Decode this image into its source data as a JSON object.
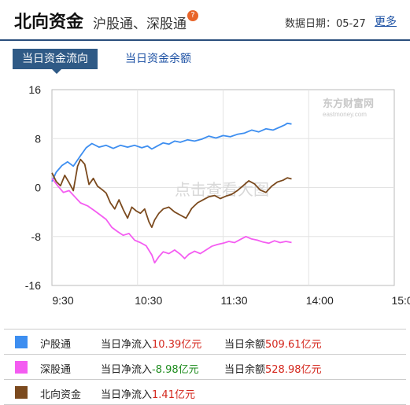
{
  "header": {
    "title": "北向资金",
    "subtitle": "沪股通、深股通",
    "help_icon": "question-icon",
    "date_label": "数据日期：05-27",
    "more_label": "更多"
  },
  "tabs": [
    {
      "label": "当日资金流向",
      "active": true
    },
    {
      "label": "当日资金余额",
      "active": false
    }
  ],
  "chart_data": {
    "type": "line",
    "watermark_brand": "东方财富网",
    "watermark_url": "eastmoney.com",
    "watermark_text": "点击查看大图",
    "ylim": [
      -16,
      16
    ],
    "y_ticks": [
      "16",
      "8",
      "0",
      "-8",
      "-16"
    ],
    "x_ticks": [
      "9:30",
      "10:30",
      "11:30",
      "14:00",
      "15:00"
    ],
    "grid": true,
    "series": [
      {
        "name": "沪股通",
        "color": "#3d8ef0",
        "points": [
          [
            0,
            1.0
          ],
          [
            3,
            2.5
          ],
          [
            7,
            3.6
          ],
          [
            11,
            4.2
          ],
          [
            15,
            3.5
          ],
          [
            20,
            5.2
          ],
          [
            24,
            6.5
          ],
          [
            28,
            7.2
          ],
          [
            33,
            6.6
          ],
          [
            38,
            6.9
          ],
          [
            43,
            6.4
          ],
          [
            48,
            6.9
          ],
          [
            53,
            6.6
          ],
          [
            58,
            6.9
          ],
          [
            63,
            6.5
          ],
          [
            67,
            6.8
          ],
          [
            70,
            6.3
          ],
          [
            74,
            6.8
          ],
          [
            78,
            7.3
          ],
          [
            82,
            7.1
          ],
          [
            86,
            7.6
          ],
          [
            90,
            7.4
          ],
          [
            95,
            7.8
          ],
          [
            100,
            7.6
          ],
          [
            105,
            7.9
          ],
          [
            110,
            8.4
          ],
          [
            115,
            8.1
          ],
          [
            120,
            8.5
          ],
          [
            125,
            8.3
          ],
          [
            130,
            8.7
          ],
          [
            135,
            8.9
          ],
          [
            140,
            9.4
          ],
          [
            145,
            9.1
          ],
          [
            150,
            9.6
          ],
          [
            155,
            9.4
          ],
          [
            160,
            9.9
          ],
          [
            163,
            10.2
          ],
          [
            165,
            10.5
          ],
          [
            168,
            10.39
          ]
        ]
      },
      {
        "name": "深股通",
        "color": "#f45cf1",
        "points": [
          [
            0,
            1.5
          ],
          [
            4,
            0.3
          ],
          [
            8,
            -0.8
          ],
          [
            12,
            -0.5
          ],
          [
            16,
            -1.5
          ],
          [
            20,
            -2.5
          ],
          [
            25,
            -3.0
          ],
          [
            30,
            -3.8
          ],
          [
            34,
            -4.5
          ],
          [
            38,
            -5.2
          ],
          [
            42,
            -6.5
          ],
          [
            46,
            -7.2
          ],
          [
            50,
            -7.8
          ],
          [
            54,
            -7.5
          ],
          [
            58,
            -8.6
          ],
          [
            62,
            -9.0
          ],
          [
            66,
            -9.5
          ],
          [
            70,
            -11.0
          ],
          [
            72,
            -12.3
          ],
          [
            75,
            -11.3
          ],
          [
            78,
            -10.5
          ],
          [
            82,
            -10.8
          ],
          [
            86,
            -10.2
          ],
          [
            90,
            -10.9
          ],
          [
            93,
            -11.6
          ],
          [
            96,
            -10.9
          ],
          [
            100,
            -10.4
          ],
          [
            104,
            -10.8
          ],
          [
            108,
            -10.2
          ],
          [
            112,
            -9.6
          ],
          [
            116,
            -9.3
          ],
          [
            120,
            -9.1
          ],
          [
            124,
            -8.8
          ],
          [
            128,
            -9.0
          ],
          [
            132,
            -8.5
          ],
          [
            136,
            -8.0
          ],
          [
            140,
            -8.4
          ],
          [
            144,
            -8.6
          ],
          [
            148,
            -8.9
          ],
          [
            152,
            -9.1
          ],
          [
            156,
            -8.7
          ],
          [
            160,
            -9.0
          ],
          [
            164,
            -8.8
          ],
          [
            168,
            -8.98
          ]
        ]
      },
      {
        "name": "北向资金",
        "color": "#7b4a1e",
        "points": [
          [
            0,
            2.4
          ],
          [
            3,
            1.0
          ],
          [
            6,
            0.3
          ],
          [
            9,
            2.0
          ],
          [
            12,
            0.8
          ],
          [
            15,
            -0.5
          ],
          [
            18,
            3.5
          ],
          [
            20,
            4.6
          ],
          [
            23,
            3.8
          ],
          [
            26,
            0.5
          ],
          [
            29,
            1.5
          ],
          [
            32,
            0.2
          ],
          [
            35,
            -0.3
          ],
          [
            38,
            -0.9
          ],
          [
            41,
            -2.5
          ],
          [
            44,
            -3.5
          ],
          [
            47,
            -2.0
          ],
          [
            50,
            -3.6
          ],
          [
            53,
            -5.0
          ],
          [
            56,
            -3.2
          ],
          [
            59,
            -3.8
          ],
          [
            62,
            -4.2
          ],
          [
            65,
            -3.5
          ],
          [
            68,
            -5.6
          ],
          [
            70,
            -6.5
          ],
          [
            72,
            -5.3
          ],
          [
            75,
            -4.2
          ],
          [
            78,
            -3.5
          ],
          [
            82,
            -3.2
          ],
          [
            86,
            -4.0
          ],
          [
            90,
            -4.5
          ],
          [
            94,
            -5.0
          ],
          [
            98,
            -3.4
          ],
          [
            102,
            -2.5
          ],
          [
            106,
            -2.0
          ],
          [
            110,
            -1.5
          ],
          [
            114,
            -1.3
          ],
          [
            118,
            -1.8
          ],
          [
            122,
            -1.4
          ],
          [
            126,
            -1.1
          ],
          [
            130,
            -0.5
          ],
          [
            134,
            0.3
          ],
          [
            138,
            1.1
          ],
          [
            142,
            0.6
          ],
          [
            146,
            -0.4
          ],
          [
            150,
            -0.8
          ],
          [
            154,
            0.2
          ],
          [
            158,
            0.9
          ],
          [
            162,
            1.2
          ],
          [
            165,
            1.6
          ],
          [
            168,
            1.41
          ]
        ]
      }
    ]
  },
  "legend": [
    {
      "name": "沪股通",
      "color": "#3d8ef0",
      "flow_label": "当日净流入",
      "flow_value": "10.39亿元",
      "flow_positive": true,
      "balance_label": "当日余额",
      "balance_value": "509.61亿元"
    },
    {
      "name": "深股通",
      "color": "#f45cf1",
      "flow_label": "当日净流入",
      "flow_value": "-8.98亿元",
      "flow_positive": false,
      "balance_label": "当日余额",
      "balance_value": "528.98亿元"
    },
    {
      "name": "北向资金",
      "color": "#7b4a1e",
      "flow_label": "当日净流入",
      "flow_value": "1.41亿元",
      "flow_positive": true
    }
  ]
}
